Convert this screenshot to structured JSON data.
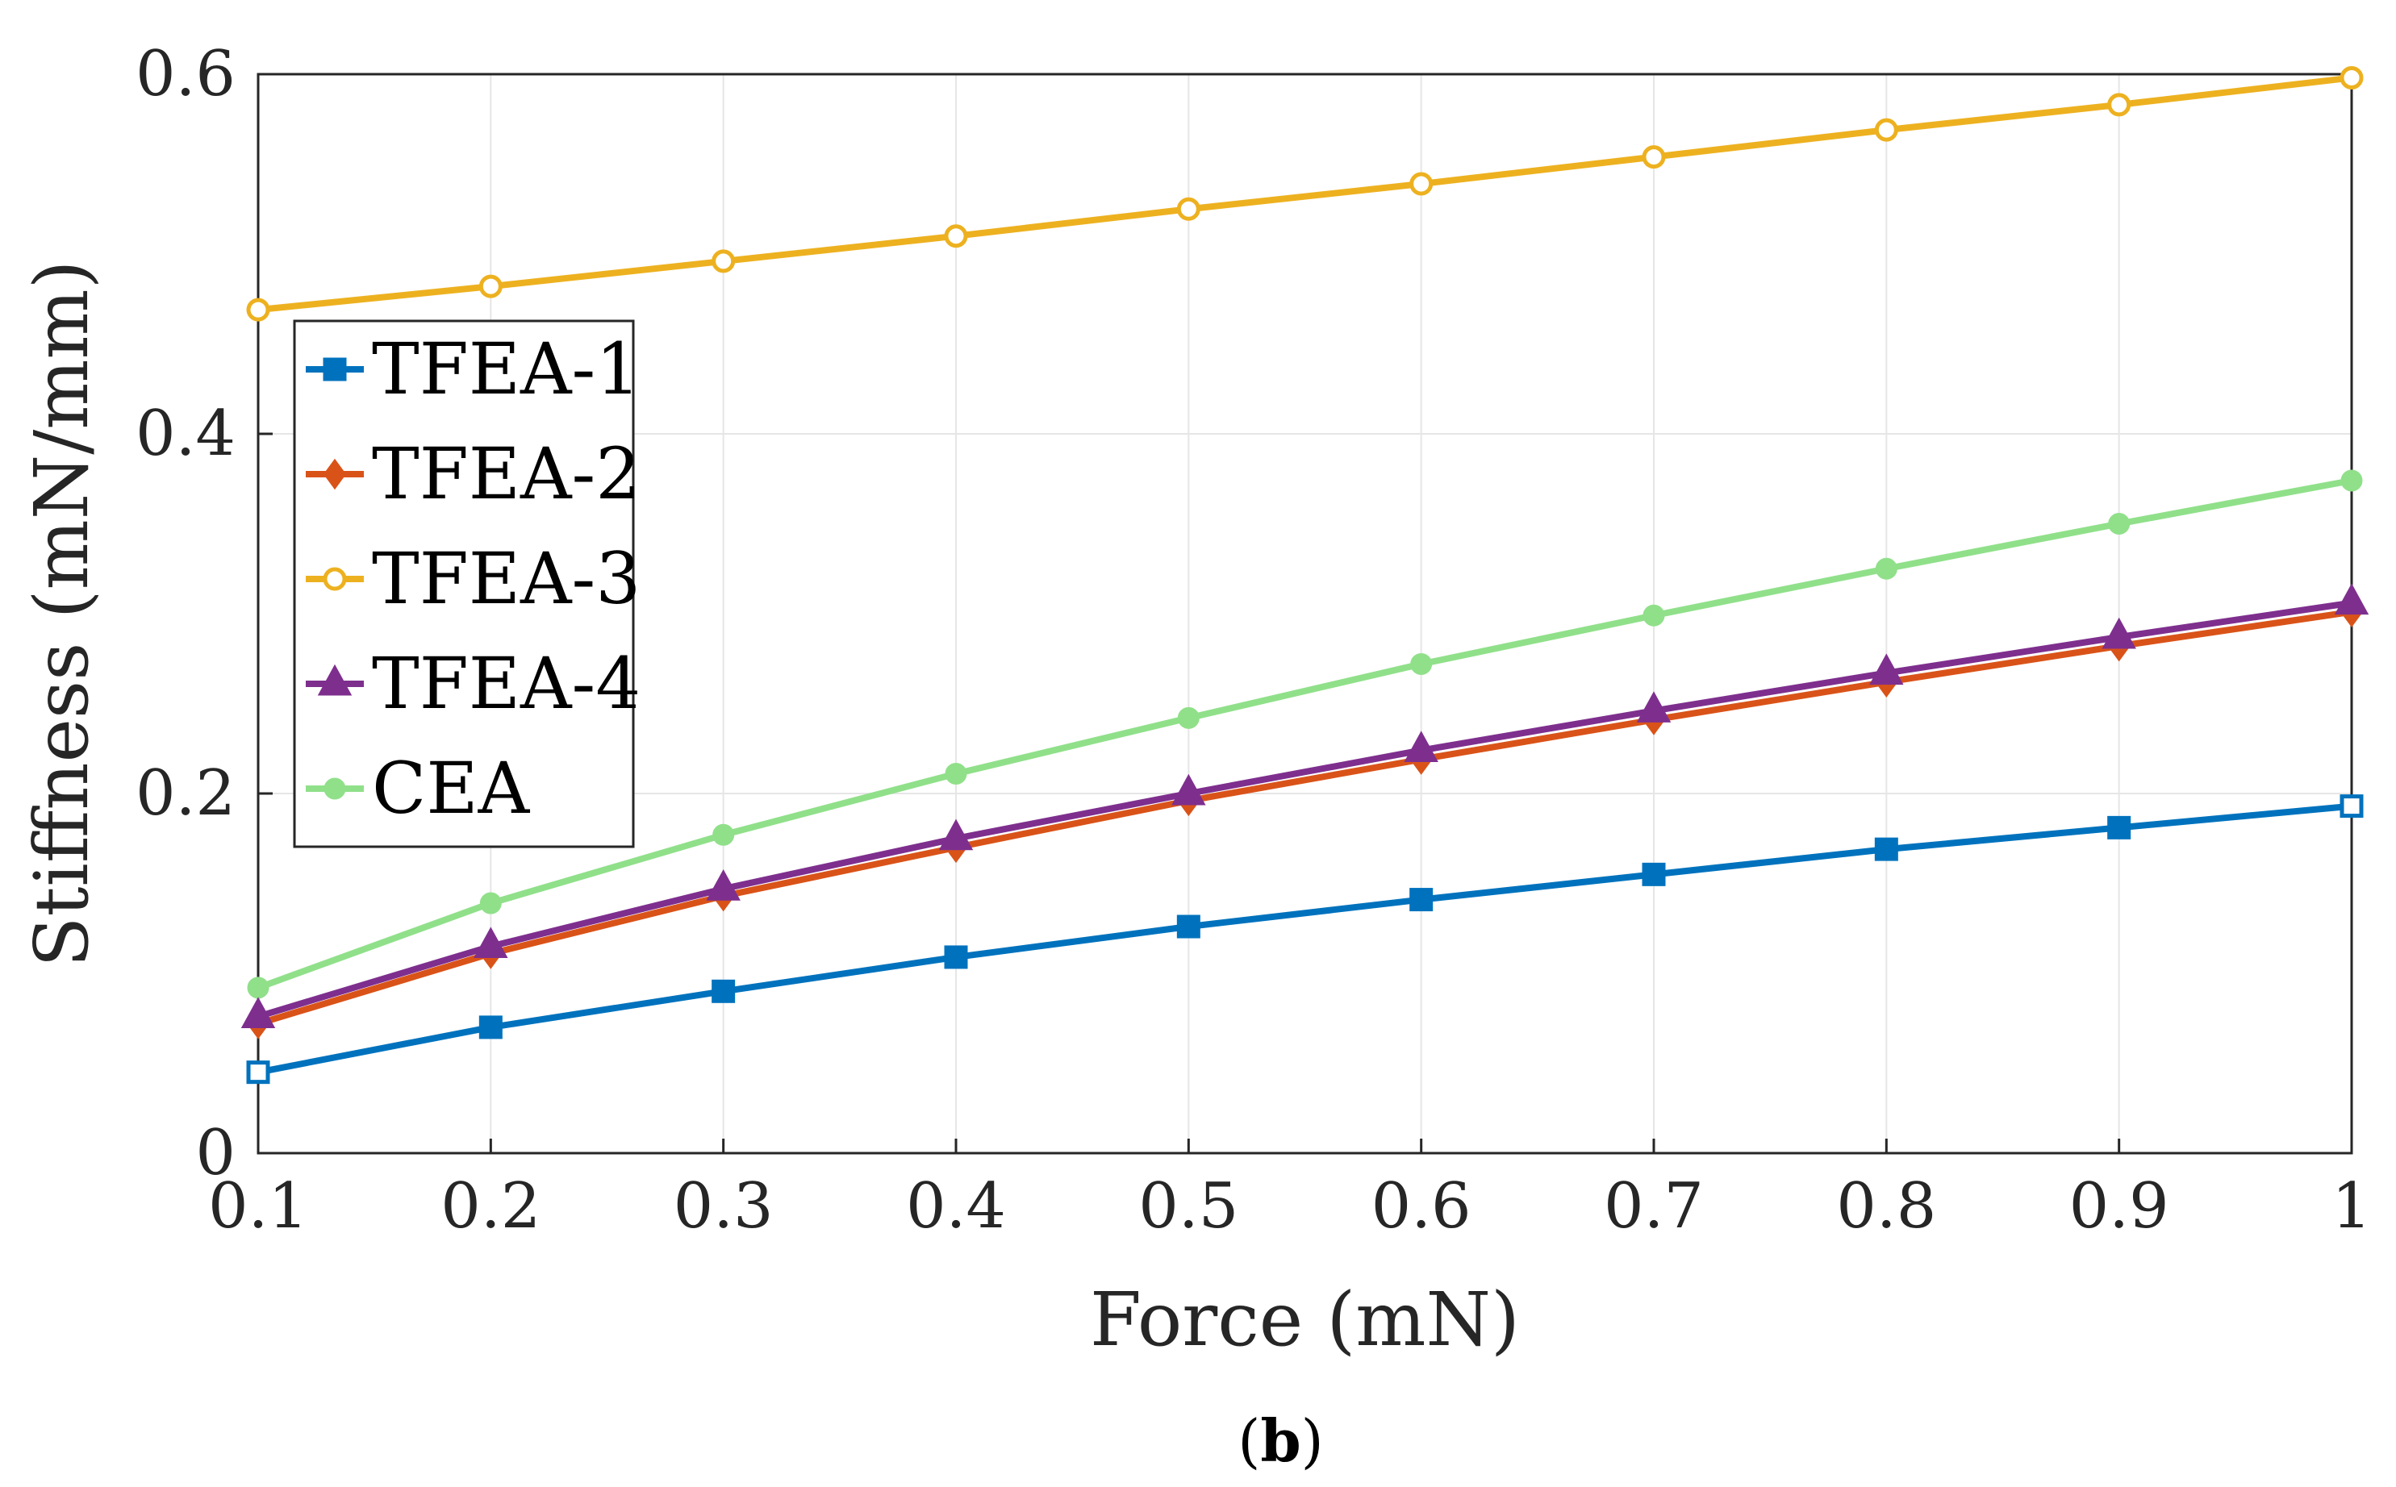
{
  "chart_data": {
    "type": "line",
    "title": "",
    "xlabel": "Force (mN)",
    "ylabel": "Stiffness (mN/mm)",
    "caption_open": "(",
    "caption_letter": "b",
    "caption_close": ")",
    "x": [
      0.1,
      0.2,
      0.3,
      0.4,
      0.5,
      0.6,
      0.7,
      0.8,
      0.9,
      1.0
    ],
    "xlim": [
      0.1,
      1.0
    ],
    "ylim": [
      0,
      0.6
    ],
    "xticks": [
      "0.1",
      "0.2",
      "0.3",
      "0.4",
      "0.5",
      "0.6",
      "0.7",
      "0.8",
      "0.9",
      "1"
    ],
    "xtick_values": [
      0.1,
      0.2,
      0.3,
      0.4,
      0.5,
      0.6,
      0.7,
      0.8,
      0.9,
      1.0
    ],
    "yticks": [
      "0",
      "0.2",
      "0.4",
      "0.6"
    ],
    "ytick_values": [
      0,
      0.2,
      0.4,
      0.6
    ],
    "grid": true,
    "legend_position": "middle-left",
    "series": [
      {
        "name": "TFEA-1",
        "color": "#0072BD",
        "marker": "square",
        "values": [
          0.045,
          0.07,
          0.09,
          0.109,
          0.126,
          0.141,
          0.155,
          0.169,
          0.181,
          0.193
        ]
      },
      {
        "name": "TFEA-2",
        "color": "#D95319",
        "marker": "diamond",
        "values": [
          0.072,
          0.111,
          0.143,
          0.17,
          0.196,
          0.219,
          0.241,
          0.262,
          0.282,
          0.301
        ]
      },
      {
        "name": "TFEA-3",
        "color": "#EDB120",
        "marker": "circle",
        "values": [
          0.469,
          0.482,
          0.496,
          0.51,
          0.525,
          0.539,
          0.554,
          0.569,
          0.583,
          0.598
        ]
      },
      {
        "name": "TFEA-4",
        "color": "#7E2F8E",
        "marker": "triangle",
        "values": [
          0.076,
          0.115,
          0.147,
          0.175,
          0.2,
          0.224,
          0.246,
          0.267,
          0.287,
          0.306
        ]
      },
      {
        "name": "CEA",
        "color": "#90E08A",
        "marker": "dot",
        "values": [
          0.092,
          0.139,
          0.177,
          0.211,
          0.242,
          0.272,
          0.299,
          0.325,
          0.35,
          0.374
        ]
      }
    ]
  }
}
